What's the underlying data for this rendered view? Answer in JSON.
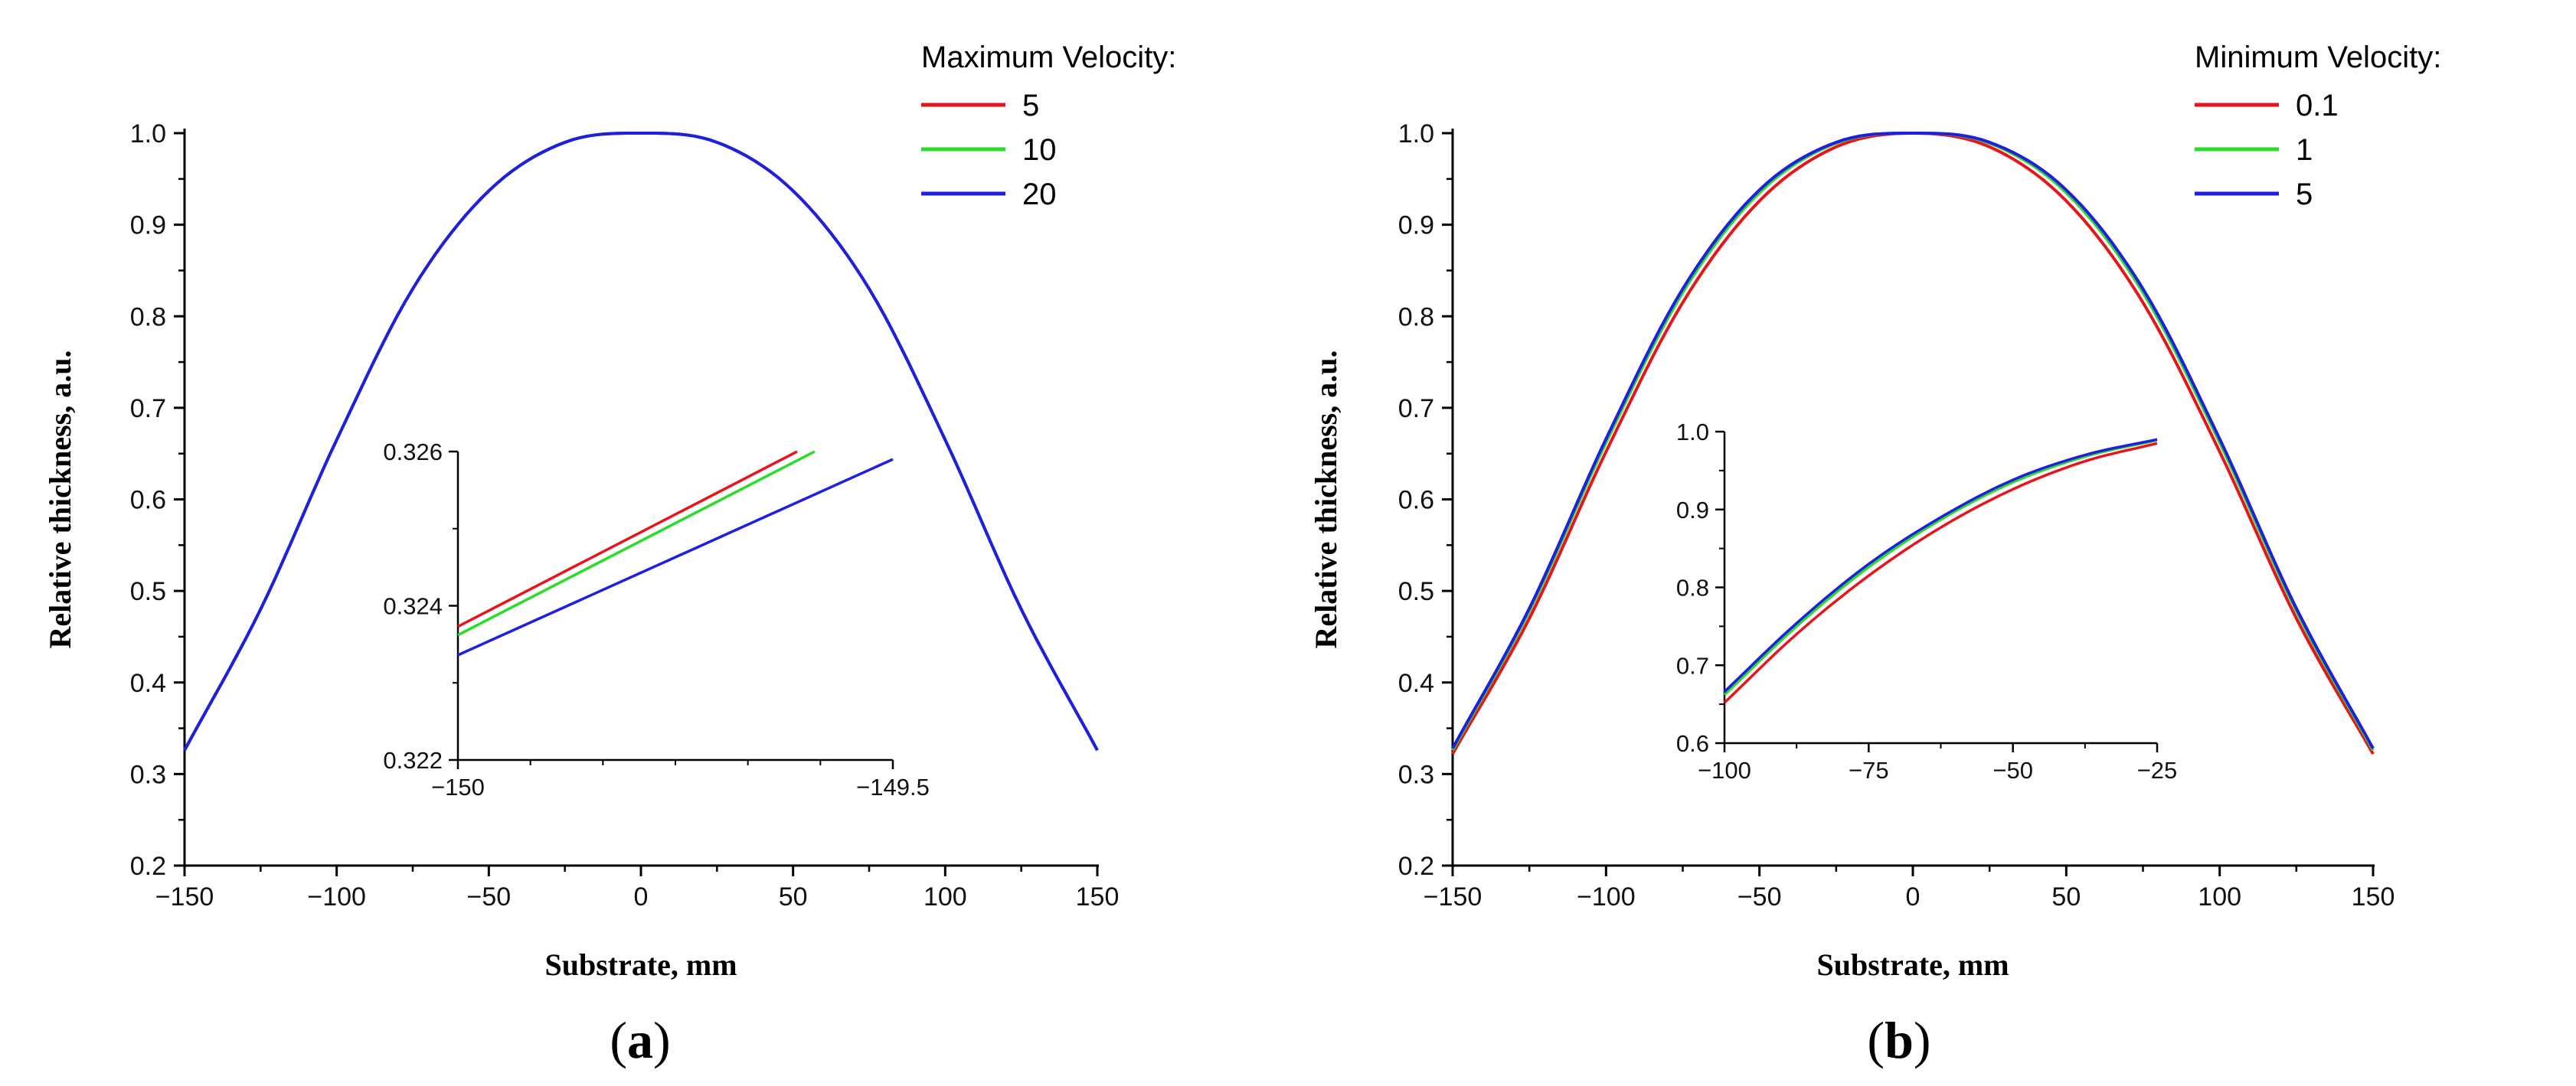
{
  "chart_data": [
    {
      "type": "line",
      "panel": "a",
      "xlabel": "Substrate, mm",
      "ylabel": "Relative thickness, a.u.",
      "xlim": [
        -150,
        150
      ],
      "ylim": [
        0.2,
        1.0
      ],
      "xticks": [
        -150,
        -100,
        -50,
        0,
        50,
        100,
        150
      ],
      "yticks": [
        0.2,
        0.3,
        0.4,
        0.5,
        0.6,
        0.7,
        0.8,
        0.9,
        1.0
      ],
      "ytick_labels": [
        "0.2",
        "0.3",
        "0.4",
        "0.5",
        "0.6",
        "0.7",
        "0.8",
        "0.9",
        "1.0"
      ],
      "legend_title": "Maximum Velocity:",
      "legend_position": "top-right, outside plot",
      "series": [
        {
          "name": "5",
          "color": "#e8141c",
          "x": [
            -150,
            -125,
            -100,
            -75,
            -50,
            -25,
            0,
            25,
            50,
            75,
            100,
            125,
            150
          ],
          "y": [
            0.326,
            0.48,
            0.665,
            0.83,
            0.937,
            0.99,
            1.0,
            0.99,
            0.937,
            0.83,
            0.665,
            0.48,
            0.326
          ]
        },
        {
          "name": "10",
          "color": "#2bdc2b",
          "x": [
            -150,
            -125,
            -100,
            -75,
            -50,
            -25,
            0,
            25,
            50,
            75,
            100,
            125,
            150
          ],
          "y": [
            0.326,
            0.48,
            0.665,
            0.83,
            0.937,
            0.99,
            1.0,
            0.99,
            0.937,
            0.83,
            0.665,
            0.48,
            0.326
          ]
        },
        {
          "name": "20",
          "color": "#1f1fe0",
          "x": [
            -150,
            -125,
            -100,
            -75,
            -50,
            -25,
            0,
            25,
            50,
            75,
            100,
            125,
            150
          ],
          "y": [
            0.326,
            0.48,
            0.665,
            0.83,
            0.937,
            0.99,
            1.0,
            0.99,
            0.937,
            0.83,
            0.665,
            0.48,
            0.326
          ]
        }
      ],
      "inset": {
        "xlim": [
          -150,
          -149.5
        ],
        "ylim": [
          0.322,
          0.326
        ],
        "xticks": [
          -150,
          -149.5
        ],
        "xtick_labels": [
          "−150",
          "−149.5"
        ],
        "yticks": [
          0.322,
          0.324,
          0.326
        ],
        "ytick_labels": [
          "0.322",
          "0.324",
          "0.326"
        ],
        "series": [
          {
            "name": "5",
            "color": "#e8141c",
            "x": [
              -150,
              -149.61
            ],
            "y": [
              0.32373,
              0.326
            ]
          },
          {
            "name": "10",
            "color": "#2bdc2b",
            "x": [
              -150,
              -149.59
            ],
            "y": [
              0.32362,
              0.326
            ]
          },
          {
            "name": "20",
            "color": "#1f1fe0",
            "x": [
              -150,
              -149.5
            ],
            "y": [
              0.32336,
              0.3259
            ]
          }
        ]
      }
    },
    {
      "type": "line",
      "panel": "b",
      "xlabel": "Substrate, mm",
      "ylabel": "Relative thickness, a.u.",
      "xlim": [
        -150,
        150
      ],
      "ylim": [
        0.2,
        1.0
      ],
      "xticks": [
        -150,
        -100,
        -50,
        0,
        50,
        100,
        150
      ],
      "yticks": [
        0.2,
        0.3,
        0.4,
        0.5,
        0.6,
        0.7,
        0.8,
        0.9,
        1.0
      ],
      "ytick_labels": [
        "0.2",
        "0.3",
        "0.4",
        "0.5",
        "0.6",
        "0.7",
        "0.8",
        "0.9",
        "1.0"
      ],
      "legend_title": "Minimum Velocity:",
      "legend_position": "top-right, outside plot",
      "series": [
        {
          "name": "0.1",
          "color": "#e8141c",
          "x": [
            -150,
            -125,
            -100,
            -75,
            -50,
            -25,
            0,
            25,
            50,
            75,
            100,
            125,
            150
          ],
          "y": [
            0.322,
            0.47,
            0.652,
            0.815,
            0.926,
            0.985,
            1.0,
            0.985,
            0.926,
            0.815,
            0.652,
            0.47,
            0.322
          ]
        },
        {
          "name": "1",
          "color": "#2bdc2b",
          "x": [
            -150,
            -125,
            -100,
            -75,
            -50,
            -25,
            0,
            25,
            50,
            75,
            100,
            125,
            150
          ],
          "y": [
            0.326,
            0.478,
            0.662,
            0.826,
            0.935,
            0.989,
            1.0,
            0.989,
            0.935,
            0.826,
            0.662,
            0.478,
            0.326
          ]
        },
        {
          "name": "5",
          "color": "#1f1fe0",
          "x": [
            -150,
            -125,
            -100,
            -75,
            -50,
            -25,
            0,
            25,
            50,
            75,
            100,
            125,
            150
          ],
          "y": [
            0.328,
            0.481,
            0.666,
            0.83,
            0.938,
            0.99,
            1.0,
            0.99,
            0.938,
            0.83,
            0.666,
            0.481,
            0.328
          ]
        }
      ],
      "inset": {
        "xlim": [
          -100,
          -25
        ],
        "ylim": [
          0.6,
          1.0
        ],
        "xticks": [
          -100,
          -75,
          -50,
          -25
        ],
        "xtick_labels": [
          "−100",
          "−75",
          "−50",
          "−25"
        ],
        "yticks": [
          0.6,
          0.7,
          0.8,
          0.9,
          1.0
        ],
        "ytick_labels": [
          "0.6",
          "0.7",
          "0.8",
          "0.9",
          "1.0"
        ],
        "series": [
          {
            "name": "0.1",
            "color": "#e8141c",
            "x": [
              -100,
              -87.5,
              -75,
              -62.5,
              -50,
              -37.5,
              -25
            ],
            "y": [
              0.652,
              0.74,
              0.815,
              0.877,
              0.926,
              0.962,
              0.985
            ]
          },
          {
            "name": "1",
            "color": "#2bdc2b",
            "x": [
              -100,
              -87.5,
              -75,
              -62.5,
              -50,
              -37.5,
              -25
            ],
            "y": [
              0.662,
              0.75,
              0.826,
              0.887,
              0.935,
              0.968,
              0.989
            ]
          },
          {
            "name": "5",
            "color": "#1f1fe0",
            "x": [
              -100,
              -87.5,
              -75,
              -62.5,
              -50,
              -37.5,
              -25
            ],
            "y": [
              0.666,
              0.754,
              0.83,
              0.89,
              0.938,
              0.97,
              0.99
            ]
          }
        ]
      }
    }
  ],
  "panel_labels": {
    "a": {
      "open": "(",
      "letter": "a",
      "close": ")"
    },
    "b": {
      "open": "(",
      "letter": "b",
      "close": ")"
    }
  }
}
